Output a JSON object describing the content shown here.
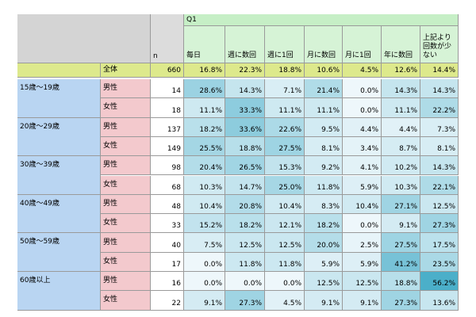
{
  "table": {
    "question": "Q1",
    "n_header": "n",
    "columns": [
      "毎日",
      "週に数回",
      "週に1回",
      "月に数回",
      "月に1回",
      "年に数回",
      "上記より回数が少ない"
    ],
    "total": {
      "label": "全体",
      "n": "660",
      "cells": [
        "16.8%",
        "22.3%",
        "18.8%",
        "10.6%",
        "4.5%",
        "12.6%",
        "14.4%"
      ]
    },
    "groups": [
      {
        "label": "15歳〜19歳",
        "rows": [
          {
            "label": "男性",
            "n": "14",
            "cells": [
              "28.6%",
              "14.3%",
              "7.1%",
              "21.4%",
              "0.0%",
              "14.3%",
              "14.3%"
            ]
          },
          {
            "label": "女性",
            "n": "18",
            "cells": [
              "11.1%",
              "33.3%",
              "11.1%",
              "11.1%",
              "0.0%",
              "11.1%",
              "22.2%"
            ]
          }
        ]
      },
      {
        "label": "20歳〜29歳",
        "rows": [
          {
            "label": "男性",
            "n": "137",
            "cells": [
              "18.2%",
              "33.6%",
              "22.6%",
              "9.5%",
              "4.4%",
              "4.4%",
              "7.3%"
            ]
          },
          {
            "label": "女性",
            "n": "149",
            "cells": [
              "25.5%",
              "18.8%",
              "27.5%",
              "8.1%",
              "3.4%",
              "8.7%",
              "8.1%"
            ]
          }
        ]
      },
      {
        "label": "30歳〜39歳",
        "rows": [
          {
            "label": "男性",
            "n": "98",
            "cells": [
              "20.4%",
              "26.5%",
              "15.3%",
              "9.2%",
              "4.1%",
              "10.2%",
              "14.3%"
            ]
          },
          {
            "label": "女性",
            "n": "68",
            "cells": [
              "10.3%",
              "14.7%",
              "25.0%",
              "11.8%",
              "5.9%",
              "10.3%",
              "22.1%"
            ]
          }
        ]
      },
      {
        "label": "40歳〜49歳",
        "rows": [
          {
            "label": "男性",
            "n": "48",
            "cells": [
              "10.4%",
              "20.8%",
              "10.4%",
              "8.3%",
              "10.4%",
              "27.1%",
              "12.5%"
            ]
          },
          {
            "label": "女性",
            "n": "33",
            "cells": [
              "15.2%",
              "18.2%",
              "12.1%",
              "18.2%",
              "0.0%",
              "9.1%",
              "27.3%"
            ]
          }
        ]
      },
      {
        "label": "50歳〜59歳",
        "rows": [
          {
            "label": "男性",
            "n": "40",
            "cells": [
              "7.5%",
              "12.5%",
              "12.5%",
              "20.0%",
              "2.5%",
              "27.5%",
              "17.5%"
            ]
          },
          {
            "label": "女性",
            "n": "17",
            "cells": [
              "0.0%",
              "11.8%",
              "11.8%",
              "5.9%",
              "5.9%",
              "41.2%",
              "23.5%"
            ]
          }
        ]
      },
      {
        "label": "60歳以上",
        "rows": [
          {
            "label": "男性",
            "n": "16",
            "cells": [
              "0.0%",
              "0.0%",
              "0.0%",
              "12.5%",
              "12.5%",
              "18.8%",
              "56.2%"
            ]
          },
          {
            "label": "女性",
            "n": "22",
            "cells": [
              "9.1%",
              "27.3%",
              "4.5%",
              "9.1%",
              "9.1%",
              "27.3%",
              "13.6%"
            ]
          }
        ]
      }
    ]
  }
}
